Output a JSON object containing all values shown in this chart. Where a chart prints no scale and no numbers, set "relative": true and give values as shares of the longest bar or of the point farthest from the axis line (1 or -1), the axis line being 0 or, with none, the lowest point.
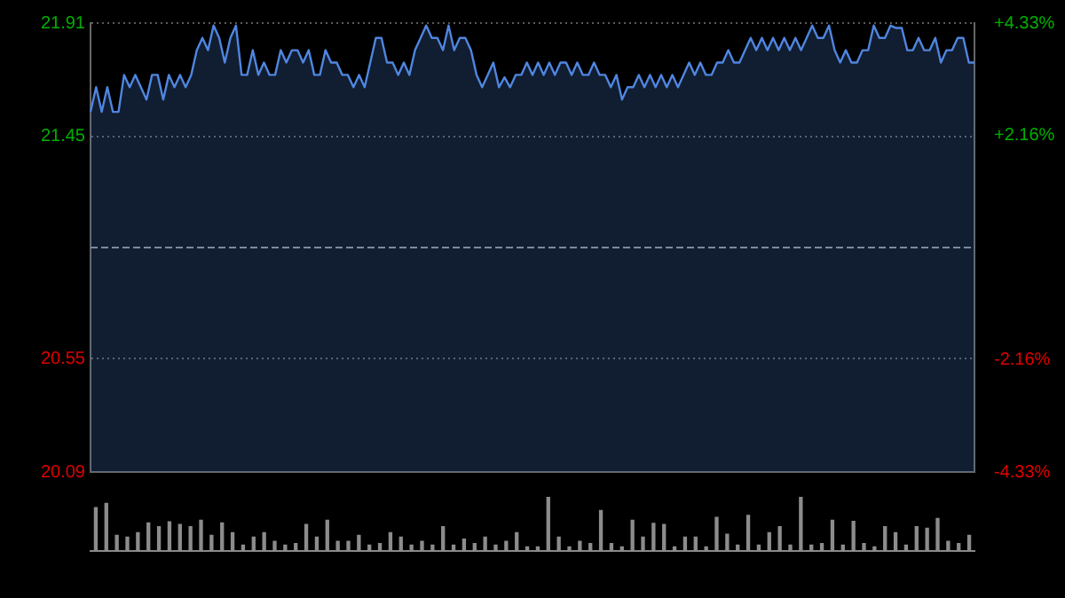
{
  "chart_data": [
    {
      "type": "area",
      "color": "#4f86e0",
      "categories": [
        null,
        null,
        null,
        null,
        null,
        null,
        null,
        null,
        null,
        null,
        null,
        null,
        null,
        null,
        null,
        null,
        null,
        null,
        null,
        null,
        null,
        null,
        null,
        null,
        null,
        null,
        null,
        null,
        null,
        null,
        null,
        null,
        null,
        null,
        null,
        null,
        null,
        null,
        null,
        null,
        null,
        null,
        null,
        null,
        null,
        null,
        null,
        null,
        null,
        null,
        null,
        null,
        null,
        null,
        null,
        null,
        null,
        null,
        null,
        null,
        null,
        null,
        null,
        null,
        null,
        null,
        null,
        null,
        null,
        null,
        null,
        null,
        null,
        null,
        null,
        null,
        null,
        null,
        null,
        null,
        null,
        null,
        null,
        null,
        null,
        null,
        null,
        null,
        null,
        null,
        null,
        null,
        null,
        null,
        null,
        null,
        null,
        null,
        null,
        null,
        null,
        null,
        null,
        null,
        null,
        null,
        null,
        null,
        null,
        null,
        null,
        null,
        null,
        null,
        null,
        null,
        null,
        null,
        null,
        null,
        null,
        null,
        null,
        null,
        null,
        null,
        null,
        null,
        null,
        null,
        null,
        null,
        null,
        null,
        null,
        null,
        null,
        null,
        null,
        null,
        null,
        null,
        null,
        null,
        null,
        null,
        null,
        null,
        null,
        null,
        null,
        null,
        null,
        null,
        null,
        null,
        null,
        null,
        null
      ],
      "values": [
        21.55,
        21.65,
        21.55,
        21.65,
        21.55,
        21.55,
        21.7,
        21.65,
        21.7,
        21.65,
        21.6,
        21.7,
        21.7,
        21.6,
        21.7,
        21.65,
        21.7,
        21.65,
        21.7,
        21.8,
        21.85,
        21.8,
        21.9,
        21.85,
        21.75,
        21.85,
        21.9,
        21.7,
        21.7,
        21.8,
        21.7,
        21.75,
        21.7,
        21.7,
        21.8,
        21.75,
        21.8,
        21.8,
        21.75,
        21.8,
        21.7,
        21.7,
        21.8,
        21.75,
        21.75,
        21.7,
        21.7,
        21.65,
        21.7,
        21.65,
        21.75,
        21.85,
        21.85,
        21.75,
        21.75,
        21.7,
        21.75,
        21.7,
        21.8,
        21.85,
        21.9,
        21.85,
        21.85,
        21.8,
        21.9,
        21.8,
        21.85,
        21.85,
        21.8,
        21.7,
        21.65,
        21.7,
        21.75,
        21.65,
        21.69,
        21.65,
        21.7,
        21.7,
        21.75,
        21.7,
        21.75,
        21.7,
        21.75,
        21.7,
        21.75,
        21.75,
        21.7,
        21.75,
        21.7,
        21.7,
        21.75,
        21.7,
        21.7,
        21.65,
        21.7,
        21.6,
        21.65,
        21.65,
        21.7,
        21.65,
        21.7,
        21.65,
        21.7,
        21.65,
        21.7,
        21.65,
        21.7,
        21.75,
        21.7,
        21.75,
        21.7,
        21.7,
        21.75,
        21.75,
        21.8,
        21.75,
        21.75,
        21.8,
        21.85,
        21.8,
        21.85,
        21.8,
        21.85,
        21.8,
        21.85,
        21.8,
        21.85,
        21.8,
        21.85,
        21.9,
        21.85,
        21.85,
        21.9,
        21.8,
        21.75,
        21.8,
        21.75,
        21.75,
        21.8,
        21.8,
        21.9,
        21.85,
        21.85,
        21.9,
        21.89,
        21.89,
        21.8,
        21.8,
        21.85,
        21.8,
        21.8,
        21.85,
        21.75,
        21.8,
        21.8,
        21.85,
        21.85,
        21.75,
        21.75
      ],
      "ylim": [
        20.09,
        21.91
      ],
      "yticks": [
        20.09,
        20.55,
        21.45,
        21.91
      ],
      "ref_lines": [
        {
          "axis": "y",
          "value": 21.0,
          "color": "#7a8aa0",
          "line_style": "dashed"
        }
      ],
      "y2lim": [
        -4.33,
        4.33
      ],
      "y2ticks": [
        {
          "value": -4.33,
          "label": "-4.33%"
        },
        {
          "value": -2.16,
          "label": "-2.16%"
        },
        {
          "value": 2.16,
          "label": "+2.16%"
        },
        {
          "value": 4.33,
          "label": "+4.33%"
        }
      ],
      "grid": "y",
      "tick_labels": "y"
    },
    {
      "type": "bar",
      "relative": true,
      "color": "#8c8c8c",
      "categories": [
        null,
        null,
        null,
        null,
        null,
        null,
        null,
        null,
        null,
        null,
        null,
        null,
        null,
        null,
        null,
        null,
        null,
        null,
        null,
        null,
        null,
        null,
        null,
        null,
        null,
        null,
        null,
        null,
        null,
        null,
        null,
        null,
        null,
        null,
        null,
        null,
        null,
        null,
        null,
        null,
        null,
        null,
        null,
        null,
        null,
        null,
        null,
        null,
        null,
        null,
        null,
        null,
        null,
        null,
        null,
        null,
        null,
        null,
        null,
        null,
        null,
        null,
        null,
        null,
        null,
        null,
        null,
        null,
        null,
        null,
        null,
        null,
        null,
        null,
        null,
        null,
        null,
        null,
        null,
        null,
        null,
        null,
        null,
        null
      ],
      "values": [
        0.8,
        0.88,
        0.29,
        0.26,
        0.34,
        0.52,
        0.45,
        0.54,
        0.49,
        0.45,
        0.57,
        0.29,
        0.52,
        0.34,
        0.11,
        0.26,
        0.34,
        0.18,
        0.11,
        0.14,
        0.49,
        0.26,
        0.57,
        0.18,
        0.18,
        0.29,
        0.11,
        0.14,
        0.34,
        0.26,
        0.11,
        0.18,
        0.11,
        0.45,
        0.11,
        0.22,
        0.14,
        0.26,
        0.11,
        0.18,
        0.34,
        0.08,
        0.08,
        1.0,
        0.26,
        0.08,
        0.18,
        0.14,
        0.75,
        0.14,
        0.08,
        0.57,
        0.26,
        0.51,
        0.49,
        0.08,
        0.26,
        0.26,
        0.08,
        0.62,
        0.31,
        0.11,
        0.66,
        0.11,
        0.34,
        0.45,
        0.11,
        1.0,
        0.11,
        0.14,
        0.57,
        0.11,
        0.55,
        0.14,
        0.08,
        0.45,
        0.34,
        0.11,
        0.45,
        0.42,
        0.6,
        0.18,
        0.14,
        0.29
      ]
    }
  ]
}
